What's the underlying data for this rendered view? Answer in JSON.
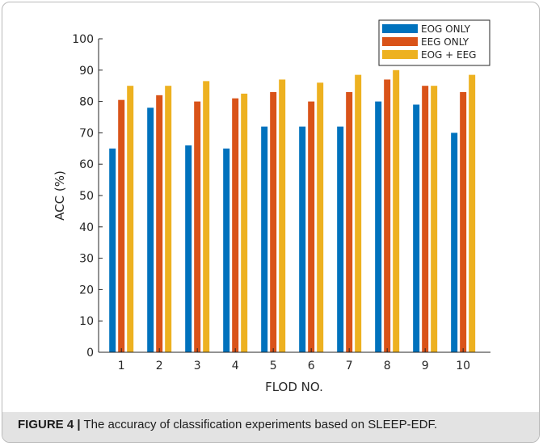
{
  "caption": {
    "label": "FIGURE 4 |",
    "text": " The accuracy of classification experiments based on SLEEP-EDF."
  },
  "chart_data": {
    "type": "bar",
    "title": "",
    "xlabel": "FLOD NO.",
    "ylabel": "ACC (%)",
    "ylim": [
      0,
      100
    ],
    "yticks": [
      0,
      10,
      20,
      30,
      40,
      50,
      60,
      70,
      80,
      90,
      100
    ],
    "categories": [
      "1",
      "2",
      "3",
      "4",
      "5",
      "6",
      "7",
      "8",
      "9",
      "10"
    ],
    "grid": false,
    "legend_position": "top-right",
    "series": [
      {
        "name": "EOG ONLY",
        "color": "#0072bd",
        "values": [
          65,
          78,
          66,
          65,
          72,
          72,
          72,
          80,
          79,
          70
        ]
      },
      {
        "name": "EEG ONLY",
        "color": "#d95319",
        "values": [
          80.5,
          82,
          80,
          81,
          83,
          80,
          83,
          87,
          85,
          83
        ]
      },
      {
        "name": "EOG + EEG",
        "color": "#edb120",
        "values": [
          85,
          85,
          86.5,
          82.5,
          87,
          86,
          88.5,
          90,
          85,
          88.5
        ]
      }
    ]
  }
}
